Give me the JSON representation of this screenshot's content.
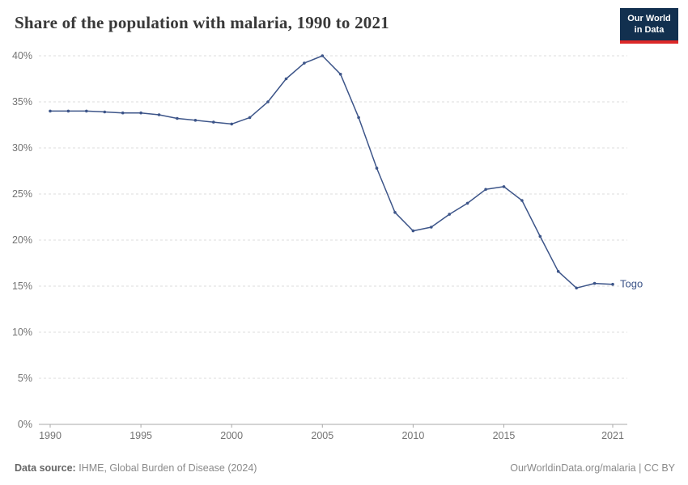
{
  "header": {
    "title": "Share of the population with malaria, 1990 to 2021",
    "logo": {
      "line1": "Our World",
      "line2": "in Data"
    }
  },
  "footer": {
    "source_label": "Data source:",
    "source_text": " IHME, Global Burden of Disease (2024)",
    "right_text": "OurWorldinData.org/malaria | CC BY"
  },
  "colors": {
    "line": "#3d5589",
    "grid": "#dcdcdc",
    "axis": "#a8a8a8",
    "tick_text": "#737373",
    "logo_bg": "#12304f",
    "logo_red": "#dc2828"
  },
  "chart_data": {
    "type": "line",
    "title": "Share of the population with malaria, 1990 to 2021",
    "xlabel": "",
    "ylabel": "",
    "xlim": [
      1990,
      2021
    ],
    "ylim": [
      0,
      40
    ],
    "yticks": [
      0,
      5,
      10,
      15,
      20,
      25,
      30,
      35,
      40
    ],
    "ytick_suffix": "%",
    "xticks": [
      1990,
      1995,
      2000,
      2005,
      2010,
      2015,
      2021
    ],
    "grid": "dashed-horizontal",
    "legend_position": "end-of-line-label",
    "x": [
      1990,
      1991,
      1992,
      1993,
      1994,
      1995,
      1996,
      1997,
      1998,
      1999,
      2000,
      2001,
      2002,
      2003,
      2004,
      2005,
      2006,
      2007,
      2008,
      2009,
      2010,
      2011,
      2012,
      2013,
      2014,
      2015,
      2016,
      2017,
      2018,
      2019,
      2020,
      2021
    ],
    "series": [
      {
        "name": "Togo",
        "color": "#3d5589",
        "values": [
          34.0,
          34.0,
          34.0,
          33.9,
          33.8,
          33.8,
          33.6,
          33.2,
          33.0,
          32.8,
          32.6,
          33.3,
          35.0,
          37.5,
          39.2,
          40.0,
          38.0,
          33.3,
          27.8,
          23.0,
          21.0,
          21.4,
          22.8,
          24.0,
          25.5,
          25.8,
          24.3,
          20.4,
          16.6,
          14.8,
          15.3,
          15.2
        ]
      }
    ]
  }
}
